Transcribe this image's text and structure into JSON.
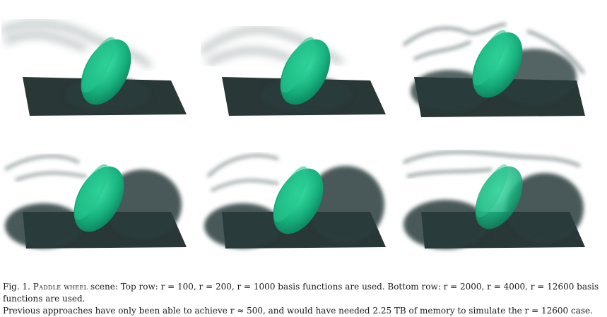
{
  "figure": {
    "label": "Fig. 1.",
    "scene_name": "Paddle wheel",
    "caption_line1_rest": " scene: Top row: r = 100, r = 200, r = 1000 basis functions are used. Bottom row: r = 2000, r = 4000, r = 12600 basis functions are used.",
    "caption_line2": "Previous approaches have only been able to achieve r ≈ 500, and would have needed 2.25 TB of memory to simulate the r = 12600 case."
  },
  "panels": [
    {
      "row": "top",
      "basis_functions": 100
    },
    {
      "row": "top",
      "basis_functions": 200
    },
    {
      "row": "top",
      "basis_functions": 1000
    },
    {
      "row": "bottom",
      "basis_functions": 2000
    },
    {
      "row": "bottom",
      "basis_functions": 4000
    },
    {
      "row": "bottom",
      "basis_functions": 12600
    }
  ],
  "colors": {
    "smoke": "#2b3d3c",
    "paddle_light": "#2ecf98",
    "paddle_dark": "#0e8f66",
    "box": "#1e2c2b"
  }
}
